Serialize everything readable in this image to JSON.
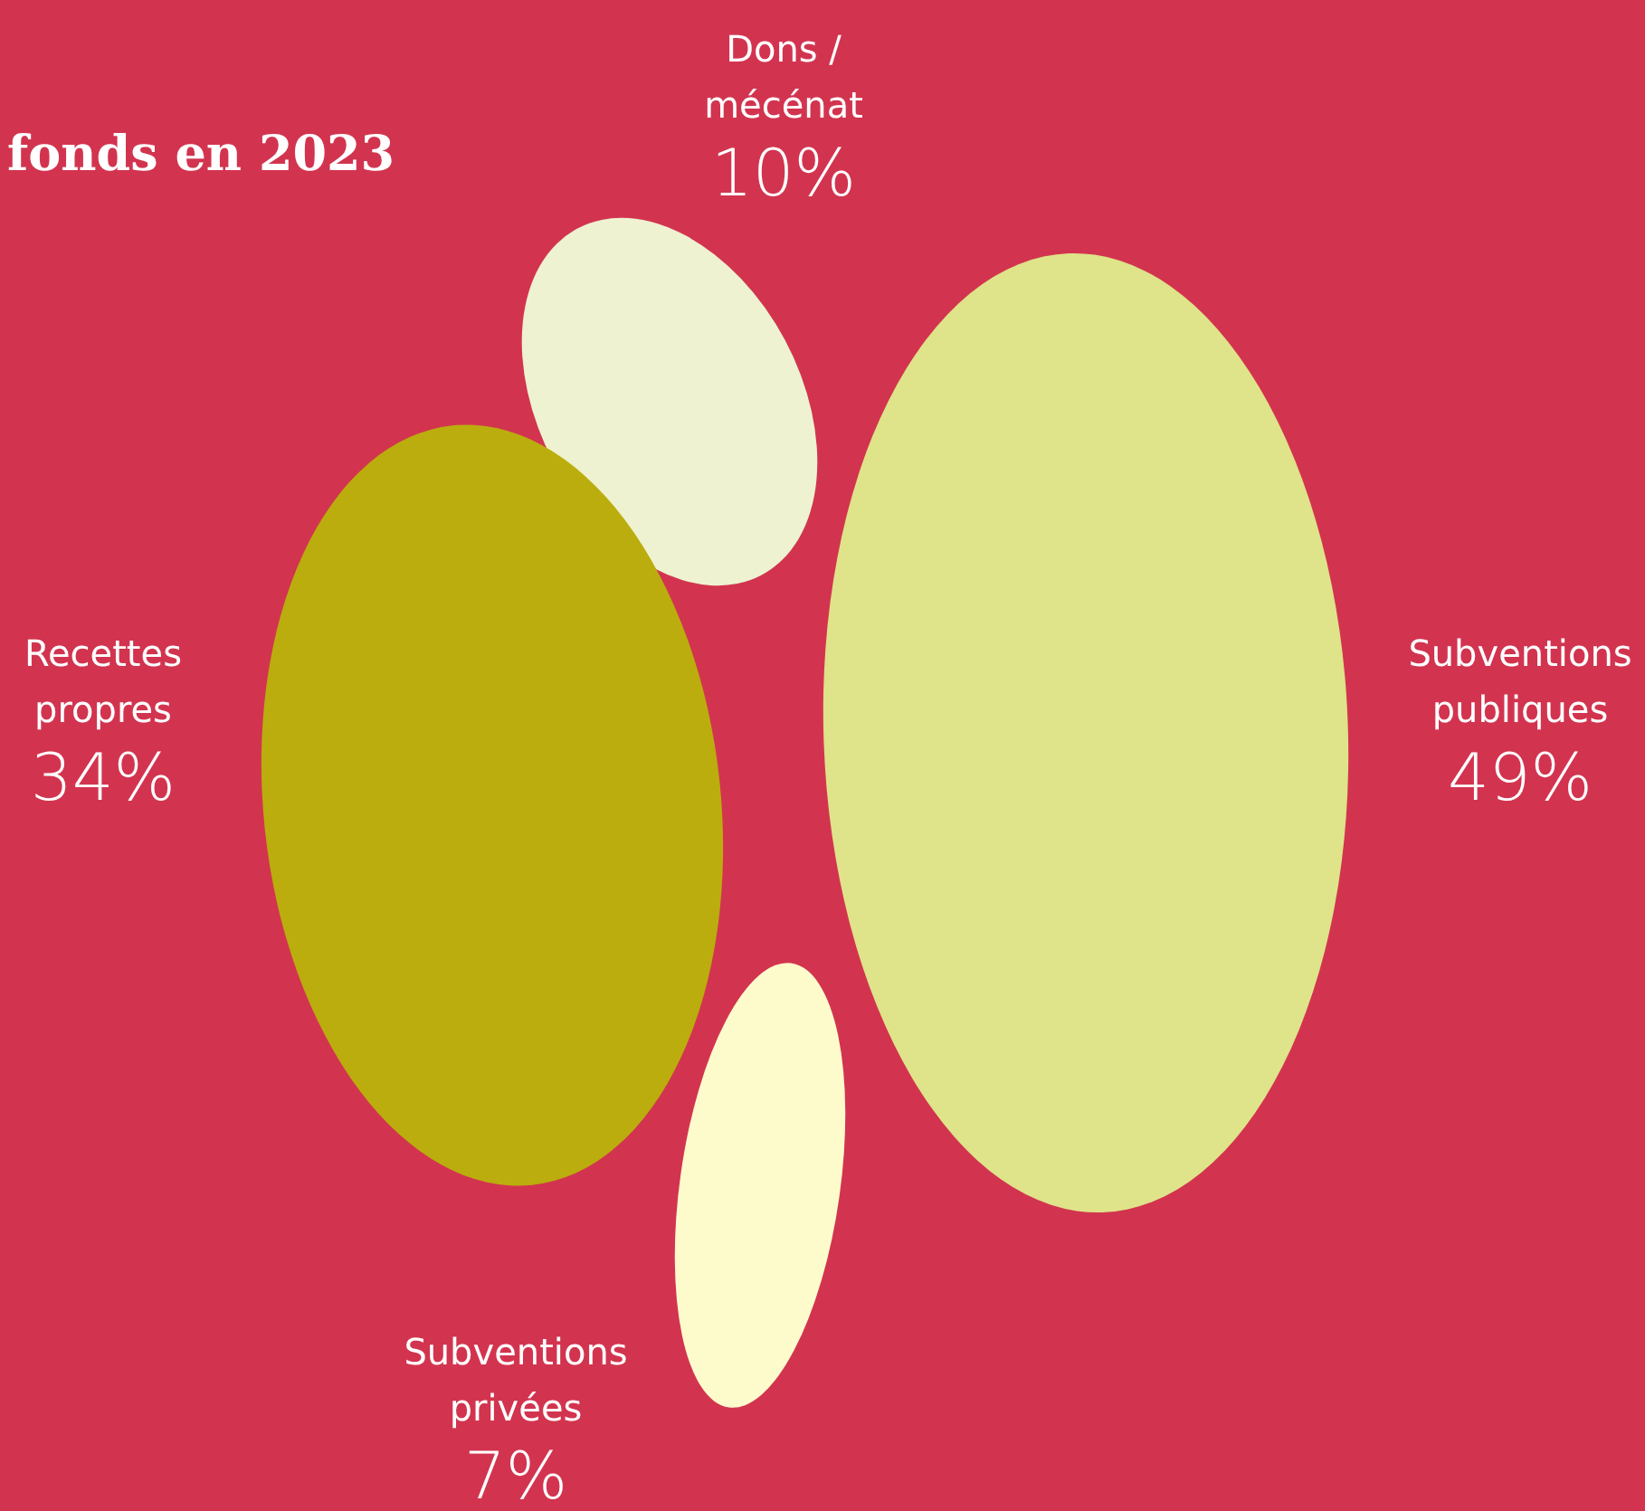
{
  "chart_data": {
    "type": "other",
    "title": "fonds en 2023",
    "categories": [
      "Dons / mécénat",
      "Subventions publiques",
      "Subventions privées",
      "Recettes propres"
    ],
    "values": [
      10,
      49,
      7,
      34
    ],
    "value_labels": [
      "10%",
      "49%",
      "7%",
      "34%"
    ],
    "colors": [
      "#eef2d0",
      "#dfe389",
      "#fdfacc",
      "#bbad0e"
    ]
  }
}
